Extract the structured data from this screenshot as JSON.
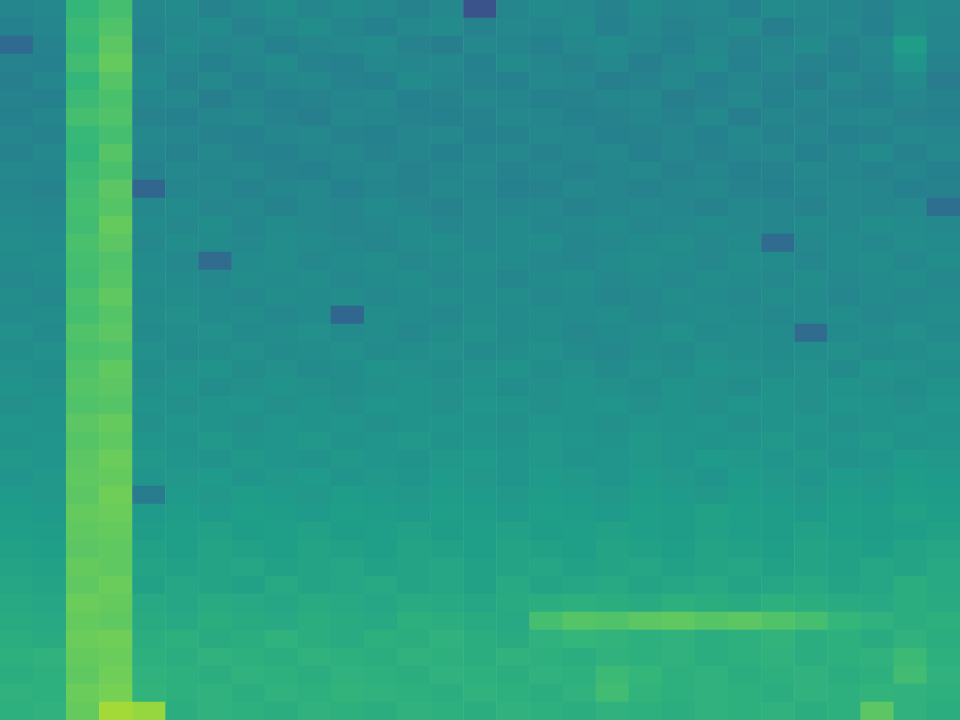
{
  "chart_data": {
    "type": "heatmap",
    "color": "viridis",
    "tick_labels": false,
    "grid": false,
    "zlim": [
      0,
      1
    ],
    "cells": [
      [
        0.46,
        0.47,
        0.66,
        0.7,
        0.47,
        0.48,
        0.45,
        0.47,
        0.49,
        0.46,
        0.48,
        0.47,
        0.45,
        0.47,
        0.26,
        0.46,
        0.48,
        0.47,
        0.45,
        0.48,
        0.46,
        0.47,
        0.44,
        0.48,
        0.47,
        0.46,
        0.45,
        0.48,
        0.47
      ],
      [
        0.44,
        0.46,
        0.68,
        0.72,
        0.46,
        0.47,
        0.48,
        0.45,
        0.47,
        0.49,
        0.46,
        0.44,
        0.47,
        0.48,
        0.45,
        0.47,
        0.46,
        0.48,
        0.44,
        0.47,
        0.45,
        0.46,
        0.48,
        0.43,
        0.46,
        0.47,
        0.44,
        0.49,
        0.46
      ],
      [
        0.34,
        0.45,
        0.67,
        0.74,
        0.45,
        0.48,
        0.46,
        0.47,
        0.44,
        0.46,
        0.47,
        0.48,
        0.45,
        0.43,
        0.47,
        0.46,
        0.44,
        0.47,
        0.48,
        0.46,
        0.44,
        0.47,
        0.45,
        0.46,
        0.48,
        0.45,
        0.47,
        0.55,
        0.46
      ],
      [
        0.45,
        0.44,
        0.69,
        0.76,
        0.47,
        0.46,
        0.44,
        0.46,
        0.48,
        0.45,
        0.44,
        0.47,
        0.46,
        0.47,
        0.44,
        0.48,
        0.46,
        0.45,
        0.47,
        0.43,
        0.46,
        0.48,
        0.44,
        0.47,
        0.45,
        0.44,
        0.46,
        0.52,
        0.45
      ],
      [
        0.43,
        0.46,
        0.66,
        0.73,
        0.48,
        0.45,
        0.47,
        0.44,
        0.46,
        0.47,
        0.45,
        0.44,
        0.48,
        0.46,
        0.45,
        0.44,
        0.47,
        0.46,
        0.43,
        0.45,
        0.47,
        0.44,
        0.46,
        0.45,
        0.43,
        0.47,
        0.45,
        0.48,
        0.42
      ],
      [
        0.45,
        0.44,
        0.68,
        0.71,
        0.46,
        0.47,
        0.43,
        0.46,
        0.44,
        0.45,
        0.46,
        0.47,
        0.44,
        0.45,
        0.47,
        0.46,
        0.44,
        0.45,
        0.46,
        0.47,
        0.43,
        0.45,
        0.47,
        0.44,
        0.46,
        0.45,
        0.44,
        0.46,
        0.45
      ],
      [
        0.44,
        0.46,
        0.7,
        0.72,
        0.45,
        0.44,
        0.46,
        0.47,
        0.45,
        0.43,
        0.47,
        0.46,
        0.45,
        0.44,
        0.45,
        0.47,
        0.46,
        0.44,
        0.45,
        0.46,
        0.45,
        0.47,
        0.43,
        0.46,
        0.45,
        0.46,
        0.47,
        0.45,
        0.44
      ],
      [
        0.46,
        0.45,
        0.67,
        0.7,
        0.47,
        0.46,
        0.45,
        0.44,
        0.46,
        0.47,
        0.45,
        0.44,
        0.46,
        0.47,
        0.44,
        0.45,
        0.47,
        0.46,
        0.44,
        0.45,
        0.46,
        0.44,
        0.47,
        0.45,
        0.46,
        0.44,
        0.45,
        0.47,
        0.46
      ],
      [
        0.45,
        0.47,
        0.66,
        0.73,
        0.46,
        0.45,
        0.47,
        0.45,
        0.44,
        0.46,
        0.47,
        0.45,
        0.46,
        0.44,
        0.46,
        0.47,
        0.45,
        0.46,
        0.47,
        0.44,
        0.46,
        0.45,
        0.46,
        0.47,
        0.44,
        0.46,
        0.48,
        0.45,
        0.47
      ],
      [
        0.47,
        0.46,
        0.68,
        0.71,
        0.45,
        0.47,
        0.46,
        0.47,
        0.45,
        0.44,
        0.46,
        0.47,
        0.45,
        0.46,
        0.47,
        0.45,
        0.46,
        0.45,
        0.46,
        0.47,
        0.45,
        0.46,
        0.44,
        0.45,
        0.47,
        0.46,
        0.45,
        0.46,
        0.44
      ],
      [
        0.46,
        0.45,
        0.69,
        0.74,
        0.33,
        0.46,
        0.47,
        0.45,
        0.46,
        0.47,
        0.44,
        0.46,
        0.45,
        0.47,
        0.46,
        0.44,
        0.45,
        0.47,
        0.46,
        0.45,
        0.46,
        0.47,
        0.45,
        0.44,
        0.46,
        0.47,
        0.46,
        0.44,
        0.45
      ],
      [
        0.47,
        0.46,
        0.7,
        0.73,
        0.47,
        0.48,
        0.46,
        0.47,
        0.45,
        0.47,
        0.46,
        0.48,
        0.46,
        0.45,
        0.47,
        0.46,
        0.47,
        0.45,
        0.46,
        0.47,
        0.46,
        0.45,
        0.47,
        0.46,
        0.45,
        0.47,
        0.46,
        0.47,
        0.36
      ],
      [
        0.48,
        0.47,
        0.69,
        0.76,
        0.48,
        0.47,
        0.49,
        0.46,
        0.48,
        0.47,
        0.46,
        0.47,
        0.48,
        0.46,
        0.47,
        0.48,
        0.46,
        0.47,
        0.48,
        0.46,
        0.47,
        0.48,
        0.47,
        0.46,
        0.48,
        0.47,
        0.49,
        0.48,
        0.47
      ],
      [
        0.49,
        0.48,
        0.71,
        0.74,
        0.47,
        0.49,
        0.48,
        0.47,
        0.49,
        0.48,
        0.47,
        0.46,
        0.48,
        0.49,
        0.47,
        0.48,
        0.49,
        0.46,
        0.47,
        0.48,
        0.49,
        0.47,
        0.48,
        0.35,
        0.47,
        0.48,
        0.47,
        0.49,
        0.48
      ],
      [
        0.48,
        0.49,
        0.7,
        0.72,
        0.48,
        0.47,
        0.35,
        0.48,
        0.49,
        0.47,
        0.48,
        0.49,
        0.47,
        0.48,
        0.49,
        0.48,
        0.47,
        0.46,
        0.48,
        0.49,
        0.48,
        0.47,
        0.49,
        0.48,
        0.46,
        0.48,
        0.49,
        0.47,
        0.49
      ],
      [
        0.47,
        0.48,
        0.69,
        0.73,
        0.49,
        0.48,
        0.47,
        0.49,
        0.48,
        0.49,
        0.47,
        0.48,
        0.49,
        0.47,
        0.48,
        0.46,
        0.48,
        0.49,
        0.47,
        0.48,
        0.47,
        0.49,
        0.48,
        0.47,
        0.49,
        0.47,
        0.48,
        0.49,
        0.47
      ],
      [
        0.49,
        0.47,
        0.71,
        0.75,
        0.48,
        0.49,
        0.48,
        0.47,
        0.49,
        0.48,
        0.49,
        0.47,
        0.48,
        0.49,
        0.48,
        0.49,
        0.47,
        0.48,
        0.46,
        0.47,
        0.49,
        0.48,
        0.47,
        0.49,
        0.48,
        0.46,
        0.48,
        0.47,
        0.48
      ],
      [
        0.48,
        0.49,
        0.7,
        0.73,
        0.49,
        0.5,
        0.48,
        0.49,
        0.47,
        0.48,
        0.33,
        0.49,
        0.48,
        0.47,
        0.49,
        0.48,
        0.49,
        0.48,
        0.49,
        0.47,
        0.48,
        0.49,
        0.48,
        0.47,
        0.48,
        0.49,
        0.47,
        0.48,
        0.49
      ],
      [
        0.5,
        0.48,
        0.72,
        0.74,
        0.48,
        0.49,
        0.5,
        0.48,
        0.49,
        0.5,
        0.48,
        0.49,
        0.47,
        0.49,
        0.5,
        0.48,
        0.49,
        0.47,
        0.48,
        0.49,
        0.5,
        0.48,
        0.49,
        0.48,
        0.35,
        0.48,
        0.49,
        0.5,
        0.48
      ],
      [
        0.49,
        0.5,
        0.71,
        0.72,
        0.5,
        0.48,
        0.49,
        0.5,
        0.48,
        0.49,
        0.5,
        0.48,
        0.49,
        0.5,
        0.48,
        0.49,
        0.5,
        0.48,
        0.47,
        0.49,
        0.48,
        0.5,
        0.49,
        0.48,
        0.49,
        0.5,
        0.48,
        0.49,
        0.5
      ],
      [
        0.5,
        0.49,
        0.72,
        0.75,
        0.49,
        0.5,
        0.51,
        0.49,
        0.5,
        0.48,
        0.49,
        0.51,
        0.5,
        0.49,
        0.5,
        0.51,
        0.49,
        0.5,
        0.48,
        0.5,
        0.49,
        0.51,
        0.5,
        0.49,
        0.5,
        0.48,
        0.51,
        0.5,
        0.49
      ],
      [
        0.51,
        0.5,
        0.73,
        0.74,
        0.5,
        0.51,
        0.49,
        0.5,
        0.51,
        0.5,
        0.49,
        0.5,
        0.51,
        0.5,
        0.51,
        0.49,
        0.5,
        0.51,
        0.5,
        0.49,
        0.51,
        0.5,
        0.49,
        0.51,
        0.5,
        0.51,
        0.5,
        0.49,
        0.51
      ],
      [
        0.5,
        0.51,
        0.72,
        0.73,
        0.51,
        0.5,
        0.51,
        0.52,
        0.5,
        0.51,
        0.5,
        0.52,
        0.51,
        0.5,
        0.52,
        0.51,
        0.5,
        0.51,
        0.52,
        0.5,
        0.51,
        0.5,
        0.52,
        0.51,
        0.5,
        0.52,
        0.51,
        0.5,
        0.52
      ],
      [
        0.52,
        0.51,
        0.74,
        0.76,
        0.5,
        0.52,
        0.51,
        0.5,
        0.52,
        0.51,
        0.52,
        0.5,
        0.51,
        0.52,
        0.51,
        0.5,
        0.52,
        0.51,
        0.5,
        0.52,
        0.51,
        0.52,
        0.5,
        0.51,
        0.52,
        0.5,
        0.51,
        0.52,
        0.51
      ],
      [
        0.51,
        0.52,
        0.73,
        0.75,
        0.52,
        0.51,
        0.53,
        0.51,
        0.52,
        0.53,
        0.51,
        0.52,
        0.53,
        0.51,
        0.52,
        0.51,
        0.53,
        0.52,
        0.51,
        0.53,
        0.52,
        0.51,
        0.52,
        0.53,
        0.51,
        0.52,
        0.53,
        0.51,
        0.52
      ],
      [
        0.53,
        0.52,
        0.74,
        0.77,
        0.53,
        0.52,
        0.51,
        0.53,
        0.52,
        0.51,
        0.53,
        0.52,
        0.51,
        0.53,
        0.54,
        0.52,
        0.53,
        0.51,
        0.52,
        0.53,
        0.52,
        0.54,
        0.53,
        0.52,
        0.53,
        0.51,
        0.52,
        0.54,
        0.53
      ],
      [
        0.52,
        0.53,
        0.75,
        0.76,
        0.52,
        0.53,
        0.54,
        0.52,
        0.53,
        0.54,
        0.52,
        0.53,
        0.52,
        0.54,
        0.53,
        0.52,
        0.54,
        0.53,
        0.52,
        0.54,
        0.53,
        0.52,
        0.54,
        0.53,
        0.52,
        0.54,
        0.53,
        0.55,
        0.54
      ],
      [
        0.54,
        0.53,
        0.74,
        0.78,
        0.42,
        0.54,
        0.53,
        0.55,
        0.54,
        0.53,
        0.55,
        0.54,
        0.53,
        0.55,
        0.54,
        0.53,
        0.55,
        0.54,
        0.53,
        0.55,
        0.54,
        0.53,
        0.55,
        0.54,
        0.53,
        0.55,
        0.54,
        0.56,
        0.55
      ],
      [
        0.55,
        0.54,
        0.76,
        0.77,
        0.54,
        0.55,
        0.54,
        0.56,
        0.55,
        0.54,
        0.56,
        0.55,
        0.54,
        0.56,
        0.55,
        0.54,
        0.56,
        0.55,
        0.54,
        0.56,
        0.55,
        0.57,
        0.56,
        0.55,
        0.54,
        0.56,
        0.55,
        0.57,
        0.56
      ],
      [
        0.56,
        0.55,
        0.75,
        0.76,
        0.55,
        0.56,
        0.57,
        0.55,
        0.56,
        0.57,
        0.55,
        0.56,
        0.57,
        0.55,
        0.56,
        0.57,
        0.55,
        0.56,
        0.57,
        0.56,
        0.55,
        0.57,
        0.56,
        0.55,
        0.57,
        0.56,
        0.55,
        0.56,
        0.57
      ],
      [
        0.57,
        0.56,
        0.74,
        0.75,
        0.57,
        0.56,
        0.58,
        0.57,
        0.56,
        0.58,
        0.57,
        0.56,
        0.58,
        0.57,
        0.56,
        0.58,
        0.57,
        0.56,
        0.58,
        0.57,
        0.56,
        0.58,
        0.57,
        0.56,
        0.58,
        0.57,
        0.56,
        0.58,
        0.59
      ],
      [
        0.58,
        0.57,
        0.76,
        0.75,
        0.58,
        0.57,
        0.58,
        0.59,
        0.57,
        0.58,
        0.59,
        0.57,
        0.58,
        0.59,
        0.57,
        0.58,
        0.59,
        0.57,
        0.58,
        0.59,
        0.57,
        0.58,
        0.59,
        0.57,
        0.58,
        0.57,
        0.59,
        0.58,
        0.6
      ],
      [
        0.59,
        0.58,
        0.75,
        0.77,
        0.57,
        0.59,
        0.58,
        0.57,
        0.6,
        0.58,
        0.59,
        0.6,
        0.58,
        0.59,
        0.57,
        0.6,
        0.58,
        0.59,
        0.6,
        0.58,
        0.59,
        0.6,
        0.58,
        0.59,
        0.6,
        0.58,
        0.59,
        0.62,
        0.6
      ],
      [
        0.6,
        0.59,
        0.77,
        0.76,
        0.6,
        0.59,
        0.61,
        0.6,
        0.59,
        0.61,
        0.6,
        0.59,
        0.61,
        0.6,
        0.59,
        0.61,
        0.62,
        0.63,
        0.62,
        0.61,
        0.63,
        0.62,
        0.61,
        0.63,
        0.62,
        0.61,
        0.6,
        0.62,
        0.61
      ],
      [
        0.61,
        0.6,
        0.76,
        0.75,
        0.61,
        0.6,
        0.62,
        0.61,
        0.6,
        0.62,
        0.61,
        0.6,
        0.63,
        0.62,
        0.61,
        0.6,
        0.7,
        0.73,
        0.72,
        0.74,
        0.75,
        0.73,
        0.74,
        0.72,
        0.7,
        0.66,
        0.64,
        0.62,
        0.63
      ],
      [
        0.62,
        0.61,
        0.77,
        0.78,
        0.62,
        0.63,
        0.61,
        0.62,
        0.64,
        0.62,
        0.61,
        0.63,
        0.62,
        0.64,
        0.62,
        0.61,
        0.64,
        0.66,
        0.65,
        0.63,
        0.64,
        0.62,
        0.63,
        0.65,
        0.62,
        0.63,
        0.61,
        0.64,
        0.62
      ],
      [
        0.63,
        0.64,
        0.76,
        0.77,
        0.63,
        0.62,
        0.64,
        0.63,
        0.62,
        0.64,
        0.63,
        0.62,
        0.64,
        0.63,
        0.62,
        0.64,
        0.63,
        0.62,
        0.64,
        0.63,
        0.64,
        0.62,
        0.63,
        0.64,
        0.62,
        0.63,
        0.64,
        0.68,
        0.63
      ],
      [
        0.62,
        0.63,
        0.75,
        0.78,
        0.64,
        0.63,
        0.62,
        0.64,
        0.63,
        0.62,
        0.64,
        0.63,
        0.62,
        0.64,
        0.63,
        0.62,
        0.64,
        0.63,
        0.68,
        0.66,
        0.63,
        0.64,
        0.62,
        0.63,
        0.64,
        0.62,
        0.63,
        0.69,
        0.64
      ],
      [
        0.64,
        0.63,
        0.77,
        0.79,
        0.65,
        0.63,
        0.64,
        0.62,
        0.64,
        0.63,
        0.65,
        0.64,
        0.63,
        0.62,
        0.64,
        0.63,
        0.62,
        0.64,
        0.69,
        0.65,
        0.63,
        0.64,
        0.63,
        0.62,
        0.64,
        0.63,
        0.65,
        0.64,
        0.63
      ],
      [
        0.63,
        0.64,
        0.76,
        0.86,
        0.84,
        0.62,
        0.64,
        0.63,
        0.62,
        0.64,
        0.63,
        0.62,
        0.64,
        0.63,
        0.62,
        0.64,
        0.63,
        0.62,
        0.64,
        0.63,
        0.62,
        0.64,
        0.63,
        0.64,
        0.62,
        0.63,
        0.74,
        0.64,
        0.62
      ]
    ]
  }
}
